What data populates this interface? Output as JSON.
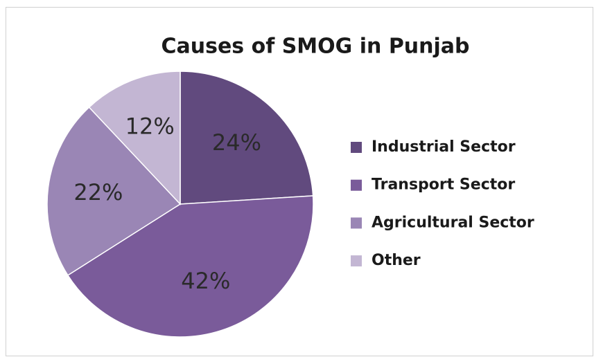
{
  "chart_data": {
    "type": "pie",
    "title": "Causes of SMOG in Punjab",
    "categories": [
      "Industrial Sector",
      "Transport Sector",
      "Agricultural Sector",
      "Other"
    ],
    "values": [
      24,
      42,
      22,
      12
    ],
    "value_labels": [
      "24%",
      "42%",
      "22%",
      "12%"
    ],
    "colors": [
      "#614a7e",
      "#7a5b9a",
      "#9a86b5",
      "#c3b6d3"
    ],
    "legend": "right"
  }
}
